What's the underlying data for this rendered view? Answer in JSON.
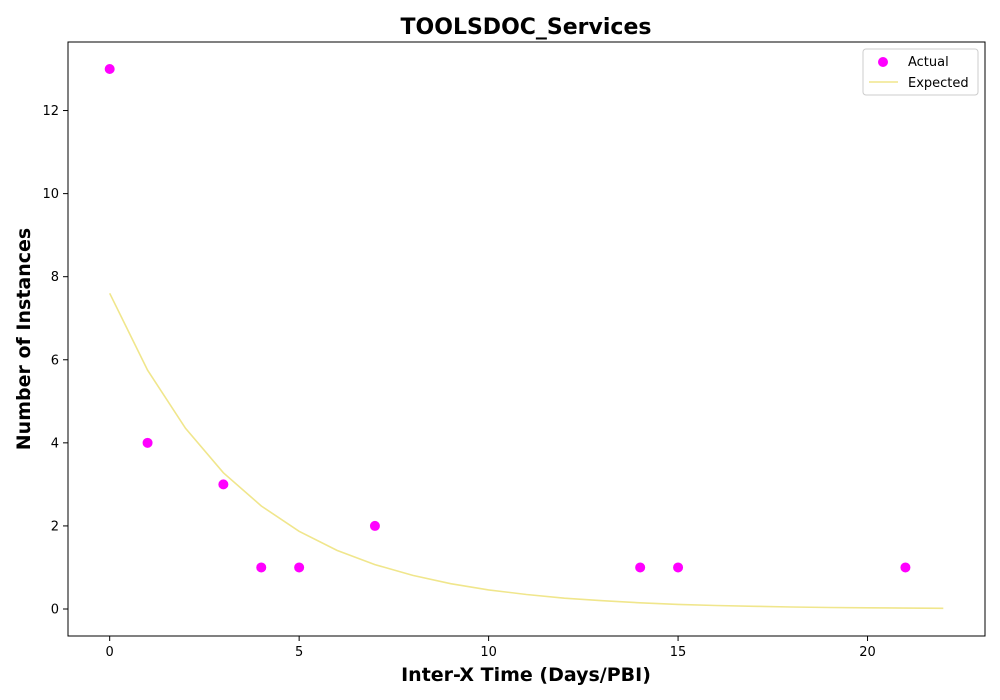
{
  "chart_data": {
    "type": "scatter",
    "title": "TOOLSDOC_Services",
    "xlabel": "Inter-X Time (Days/PBI)",
    "ylabel": "Number of Instances",
    "xlim": [
      -1.1,
      23.1
    ],
    "ylim": [
      -0.65,
      13.65
    ],
    "xticks": [
      0,
      5,
      10,
      15,
      20
    ],
    "yticks": [
      0,
      2,
      4,
      6,
      8,
      10,
      12
    ],
    "legend_position": "top-right",
    "grid": false,
    "series": [
      {
        "name": "Actual",
        "kind": "scatter",
        "color": "#ff00ff",
        "x": [
          0,
          1,
          3,
          4,
          5,
          7,
          14,
          15,
          21
        ],
        "y": [
          13,
          4,
          3,
          1,
          1,
          2,
          1,
          1,
          1
        ]
      },
      {
        "name": "Expected",
        "kind": "line",
        "color": "#f0e68c",
        "x": [
          0,
          1,
          2,
          3,
          4,
          5,
          6,
          7,
          8,
          9,
          10,
          11,
          12,
          13,
          14,
          15,
          16,
          17,
          18,
          19,
          20,
          21,
          22
        ],
        "y": [
          7.6,
          5.75,
          4.35,
          3.28,
          2.48,
          1.87,
          1.41,
          1.07,
          0.81,
          0.61,
          0.46,
          0.35,
          0.26,
          0.2,
          0.15,
          0.11,
          0.085,
          0.064,
          0.048,
          0.037,
          0.028,
          0.021,
          0.016
        ]
      }
    ]
  }
}
